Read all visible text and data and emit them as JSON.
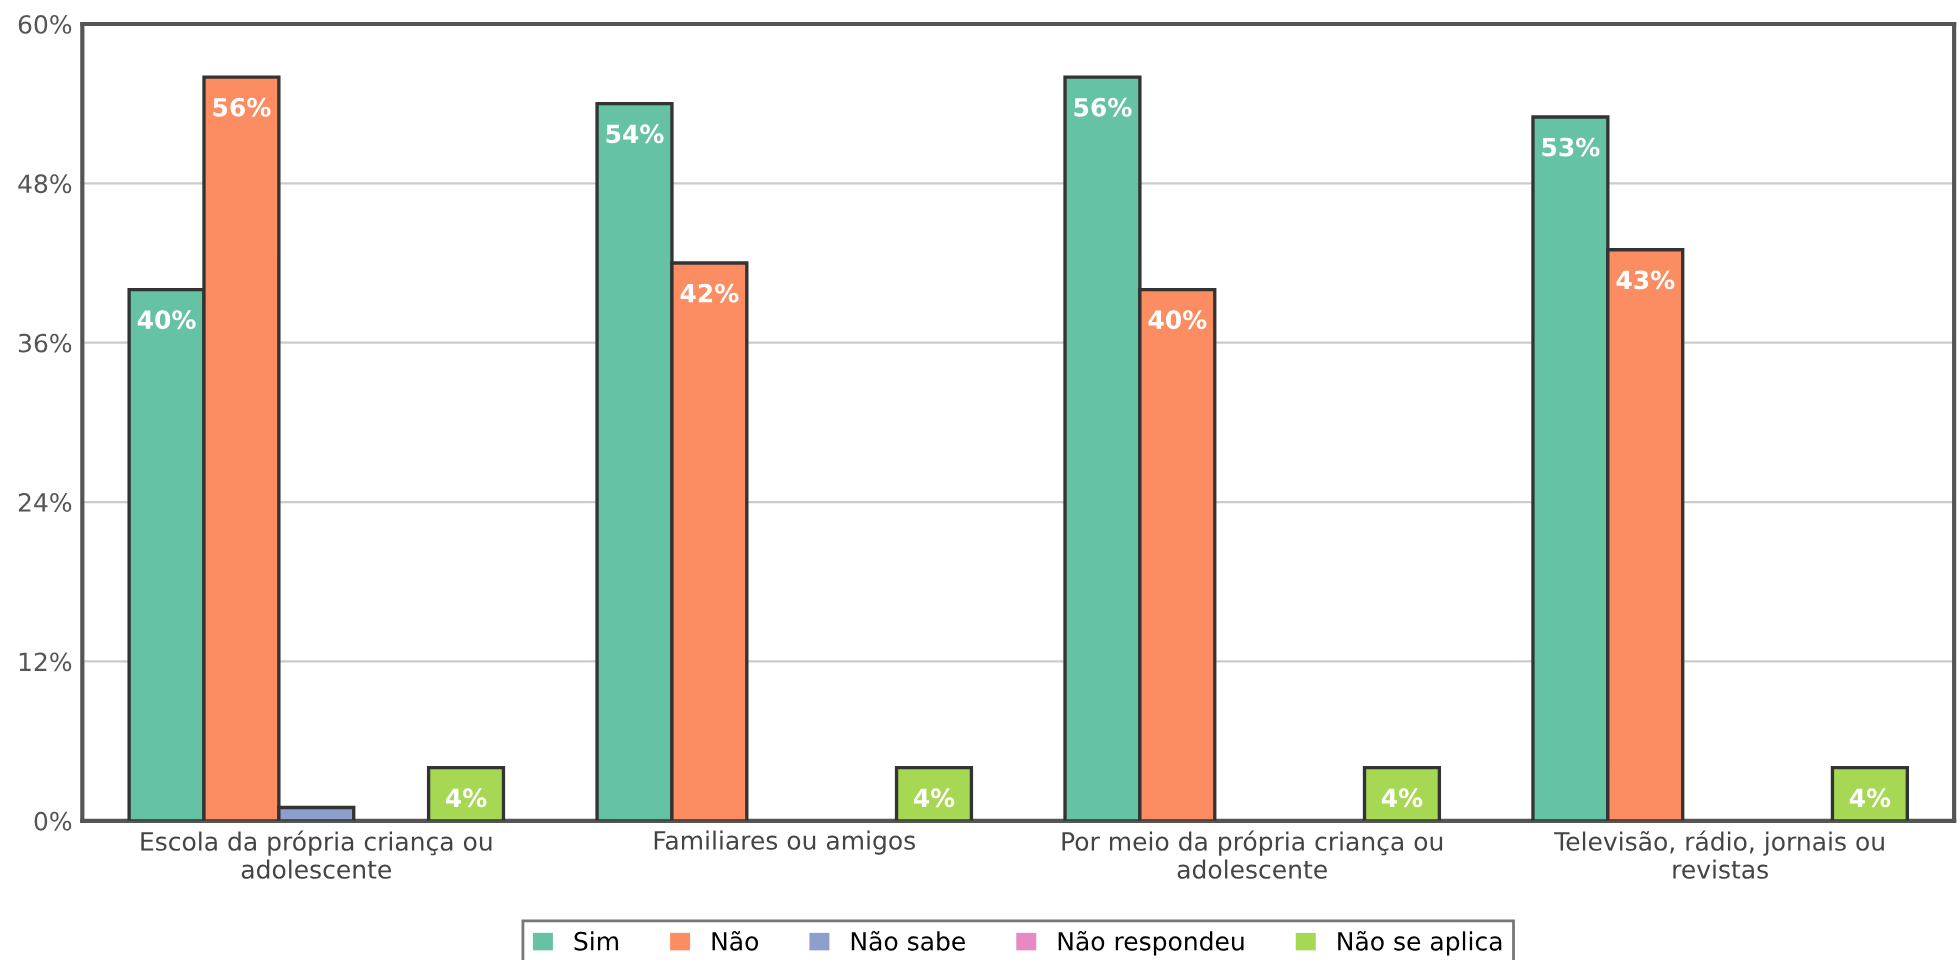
{
  "chart_data": {
    "type": "bar",
    "categories": [
      "Escola da própria criança ou adolescente",
      "Familiares ou amigos",
      "Por meio da própria criança ou adolescente",
      "Televisão, rádio, jornais ou revistas"
    ],
    "series": [
      {
        "name": "Sim",
        "color": "#66c2a5",
        "values": [
          40,
          54,
          56,
          53
        ],
        "value_labels": [
          "40%",
          "54%",
          "56%",
          "53%"
        ]
      },
      {
        "name": "Não",
        "color": "#fc8d62",
        "values": [
          56,
          42,
          40,
          43
        ],
        "value_labels": [
          "56%",
          "42%",
          "40%",
          "43%"
        ]
      },
      {
        "name": "Não sabe",
        "color": "#8da0cb",
        "values": [
          1,
          null,
          null,
          null
        ],
        "value_labels": [
          null,
          null,
          null,
          null
        ]
      },
      {
        "name": "Não respondeu",
        "color": "#e78ac3",
        "values": [
          null,
          null,
          null,
          null
        ],
        "value_labels": [
          null,
          null,
          null,
          null
        ]
      },
      {
        "name": "Não se aplica",
        "color": "#a6d854",
        "values": [
          4,
          4,
          4,
          4
        ],
        "value_labels": [
          "4%",
          "4%",
          "4%",
          "4%"
        ]
      }
    ],
    "ylim": [
      0,
      60
    ],
    "yticks": [
      {
        "value": 0,
        "label": "0%"
      },
      {
        "value": 12,
        "label": "12%"
      },
      {
        "value": 24,
        "label": "24%"
      },
      {
        "value": 36,
        "label": "36%"
      },
      {
        "value": 48,
        "label": "48%"
      },
      {
        "value": 60,
        "label": "60%"
      }
    ],
    "grid": "y",
    "legend": "bottom"
  }
}
